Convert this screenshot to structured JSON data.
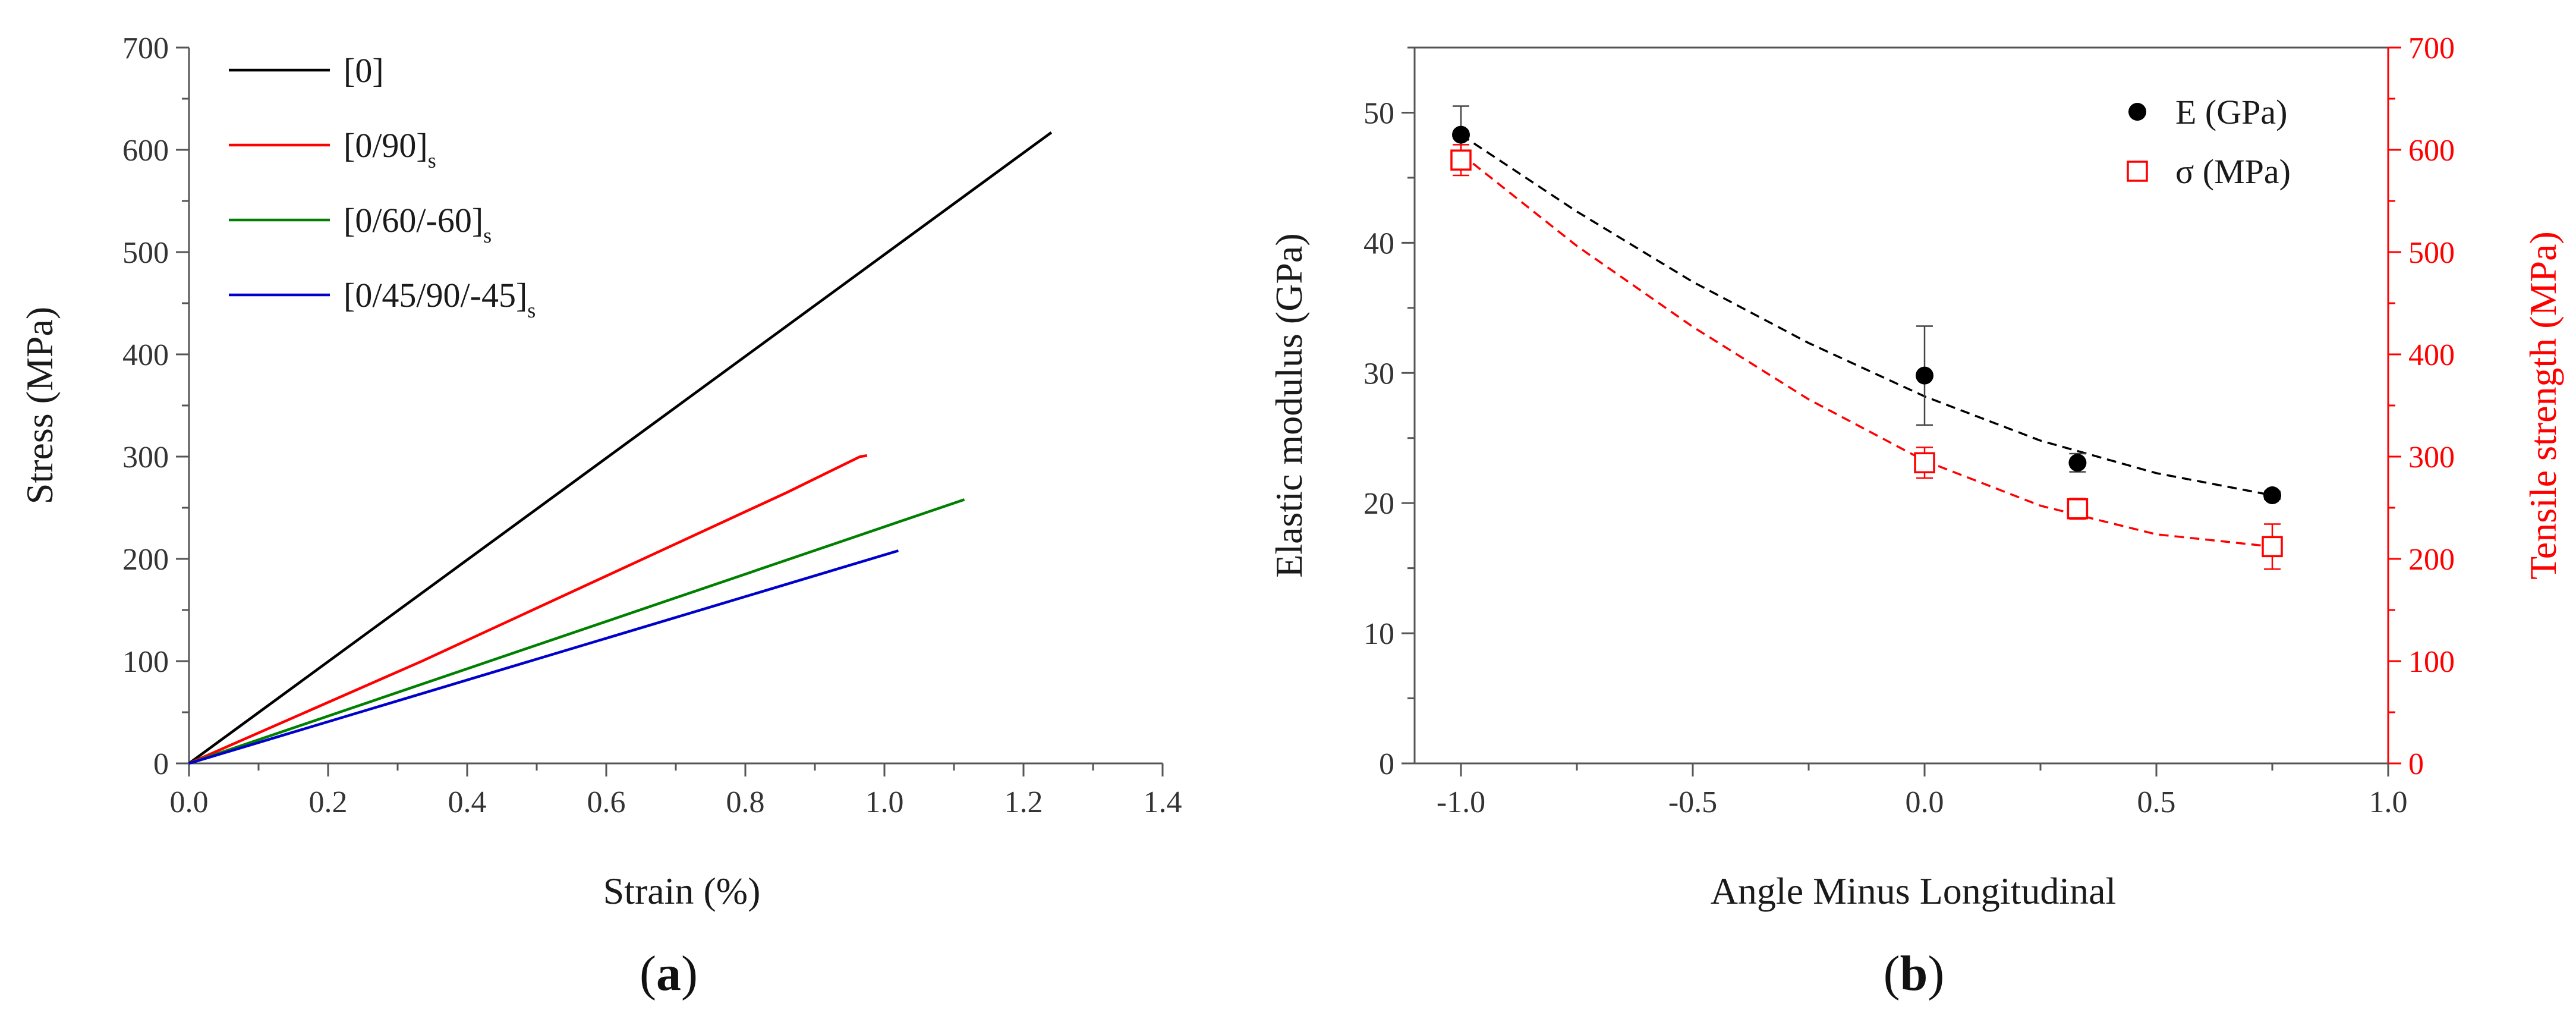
{
  "chart_data": [
    {
      "type": "line",
      "panel_label": "a",
      "xlabel": "Strain (%)",
      "ylabel": "Stress (MPa)",
      "xlim": [
        0,
        1.4
      ],
      "ylim": [
        0,
        700
      ],
      "xticks": [
        0.0,
        0.2,
        0.4,
        0.6,
        0.8,
        1.0,
        1.2,
        1.4
      ],
      "yticks": [
        0,
        100,
        200,
        300,
        400,
        500,
        600,
        700
      ],
      "xtick_labels": [
        "0.0",
        "0.2",
        "0.4",
        "0.6",
        "0.8",
        "1.0",
        "1.2",
        "1.4"
      ],
      "ytick_labels": [
        "0",
        "100",
        "200",
        "300",
        "400",
        "500",
        "600",
        "700"
      ],
      "legend_position": "top-left",
      "series": [
        {
          "name": "[0]",
          "name_main": "[0]",
          "name_sub": "",
          "color": "#000000",
          "x": [
            0,
            1.24
          ],
          "y": [
            0,
            617
          ]
        },
        {
          "name": "[0/90]s",
          "name_main": "[0/90]",
          "name_sub": "s",
          "color": "#ff0000",
          "x": [
            0,
            0.335,
            0.86,
            0.965,
            0.975
          ],
          "y": [
            0,
            100,
            265,
            300,
            301
          ]
        },
        {
          "name": "[0/60/-60]s",
          "name_main": "[0/60/-60]",
          "name_sub": "s",
          "color": "#008000",
          "x": [
            0,
            1.115
          ],
          "y": [
            0,
            258
          ]
        },
        {
          "name": "[0/45/90/-45]s",
          "name_main": "[0/45/90/-45]",
          "name_sub": "s",
          "color": "#0000cc",
          "x": [
            0,
            1.02
          ],
          "y": [
            0,
            208
          ]
        }
      ]
    },
    {
      "type": "scatter",
      "panel_label": "b",
      "xlabel": "Angle Minus Longitudinal",
      "ylabel": "Elastic modulus (GPa)",
      "ylabel_right": "Tensile strength (MPa)",
      "xlim": [
        -1.1,
        1.0
      ],
      "ylim": [
        0,
        55
      ],
      "ylim_right": [
        0,
        700
      ],
      "xticks": [
        -1.0,
        -0.5,
        0.0,
        0.5,
        1.0
      ],
      "yticks": [
        0,
        10,
        20,
        30,
        40,
        50
      ],
      "yticks_right": [
        0,
        100,
        200,
        300,
        400,
        500,
        600,
        700
      ],
      "xtick_labels": [
        "-1.0",
        "-0.5",
        "0.0",
        "0.5",
        "1.0"
      ],
      "ytick_labels": [
        "0",
        "10",
        "20",
        "30",
        "40",
        "50"
      ],
      "ytick_labels_right": [
        "0",
        "100",
        "200",
        "300",
        "400",
        "500",
        "600",
        "700"
      ],
      "right_axis_color": "#ff0000",
      "legend_position": "top-right",
      "series": [
        {
          "name": "E (GPa)",
          "axis": "left",
          "marker": "filled-circle",
          "color": "#000000",
          "x": [
            -1.0,
            0.0,
            0.33,
            0.75
          ],
          "y": [
            48.3,
            29.8,
            23.1,
            20.6
          ],
          "err": [
            2.2,
            3.8,
            0.7,
            0.3
          ],
          "fit": {
            "style": "dashed",
            "x": [
              -1.0,
              -0.75,
              -0.5,
              -0.25,
              0.0,
              0.25,
              0.5,
              0.75
            ],
            "y": [
              48.3,
              42.4,
              37.0,
              32.3,
              28.2,
              24.8,
              22.3,
              20.6
            ]
          }
        },
        {
          "name": "σ (MPa)",
          "axis": "right",
          "marker": "open-square",
          "color": "#ff0000",
          "x": [
            -1.0,
            0.0,
            0.33,
            0.75
          ],
          "y": [
            590,
            294,
            249,
            212
          ],
          "err": [
            15,
            15,
            10,
            22
          ],
          "fit": {
            "style": "dashed",
            "x": [
              -1.0,
              -0.75,
              -0.5,
              -0.25,
              0.0,
              0.25,
              0.5,
              0.75
            ],
            "y": [
              596,
              506,
              427,
              356,
              296,
              252,
              224,
              212
            ]
          }
        }
      ]
    }
  ]
}
